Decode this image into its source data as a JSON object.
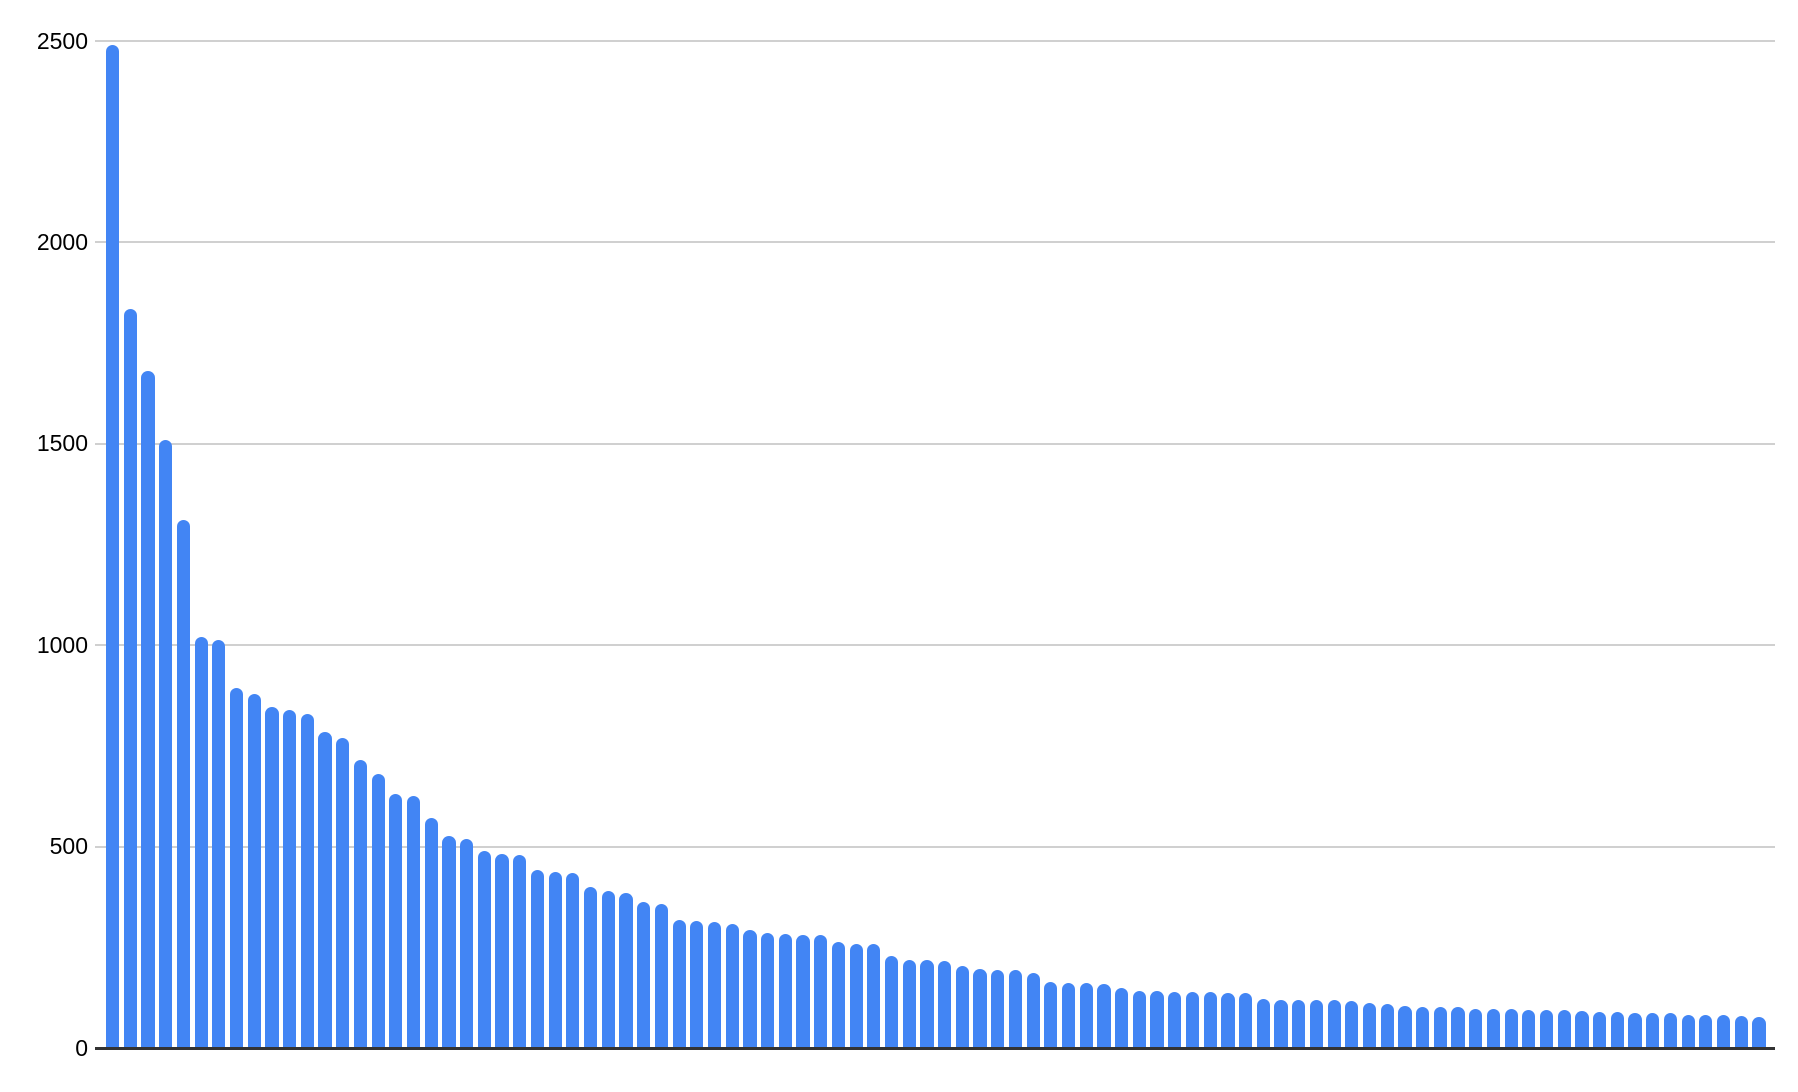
{
  "chart_data": {
    "type": "bar",
    "title": "",
    "subtitle": "",
    "xlabel": "",
    "ylabel": "",
    "categories": [],
    "num_bars": 94,
    "values": [
      2490,
      1835,
      1680,
      1510,
      1310,
      1020,
      1012,
      895,
      880,
      846,
      839,
      829,
      785,
      770,
      715,
      681,
      631,
      626,
      572,
      527,
      520,
      490,
      482,
      478,
      441,
      438,
      434,
      399,
      390,
      386,
      363,
      358,
      319,
      316,
      314,
      309,
      292,
      285,
      283,
      281,
      280,
      262,
      258,
      257,
      228,
      219,
      218,
      217,
      203,
      197,
      194,
      193,
      186,
      163,
      162,
      161,
      160,
      148,
      142,
      141,
      140,
      139,
      139,
      137,
      136,
      121,
      120,
      119,
      118,
      118,
      117,
      112,
      109,
      104,
      103,
      102,
      102,
      97,
      96,
      96,
      95,
      94,
      94,
      93,
      90,
      89,
      88,
      88,
      87,
      82,
      82,
      81,
      79,
      78
    ],
    "ylim": [
      0,
      2500
    ],
    "yticks": [
      0,
      500,
      1000,
      1500,
      2000,
      2500
    ],
    "ytick_labels": [
      "0",
      "500",
      "1000",
      "1500",
      "2000",
      "2500"
    ],
    "grid": "horizontal gridlines on",
    "legend_position": "none",
    "x_axis_labels": "none"
  },
  "colors": {
    "bar": "#4285f4",
    "gridline": "#d0d0d0",
    "axis_line": "#333333",
    "tick_label": "#000000",
    "background": "#ffffff"
  }
}
